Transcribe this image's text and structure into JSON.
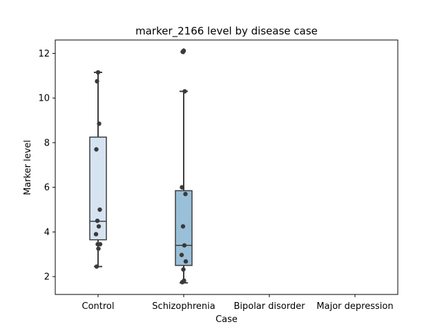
{
  "chart_data": {
    "type": "box",
    "title": "marker_2166 level by disease case",
    "xlabel": "Case",
    "ylabel": "Marker level",
    "categories": [
      "Control",
      "Schizophrenia",
      "Bipolar disorder",
      "Major depression"
    ],
    "ylim": [
      1.2,
      12.6
    ],
    "yticks": [
      2,
      4,
      6,
      8,
      10,
      12
    ],
    "grid": false,
    "boxes": [
      {
        "category": "Control",
        "color": "#d6e4f2",
        "q1": 3.65,
        "median": 4.48,
        "q3": 8.25,
        "whisker_low": 2.45,
        "whisker_high": 11.15,
        "outliers": []
      },
      {
        "category": "Schizophrenia",
        "color": "#99c0d8",
        "q1": 2.5,
        "median": 3.4,
        "q3": 5.85,
        "whisker_low": 1.72,
        "whisker_high": 10.3,
        "outliers": [
          12.12,
          12.07
        ]
      },
      {
        "category": "Bipolar disorder",
        "color": "#5c98c7",
        "q1": null,
        "median": null,
        "q3": null,
        "whisker_low": null,
        "whisker_high": null,
        "outliers": []
      },
      {
        "category": "Major depression",
        "color": "#2d6fae",
        "q1": null,
        "median": null,
        "q3": null,
        "whisker_low": null,
        "whisker_high": null,
        "outliers": []
      }
    ],
    "points": [
      {
        "category": "Control",
        "values": [
          11.15,
          10.75,
          8.85,
          7.7,
          5.0,
          4.5,
          4.25,
          3.9,
          3.45,
          3.45,
          3.25,
          2.45
        ]
      },
      {
        "category": "Schizophrenia",
        "values": [
          12.12,
          12.07,
          10.3,
          6.0,
          5.7,
          4.25,
          3.4,
          2.97,
          2.68,
          2.32,
          1.82,
          1.75
        ]
      }
    ],
    "point_color": "#3a3a3a",
    "line_color": "#3d3d3d"
  }
}
